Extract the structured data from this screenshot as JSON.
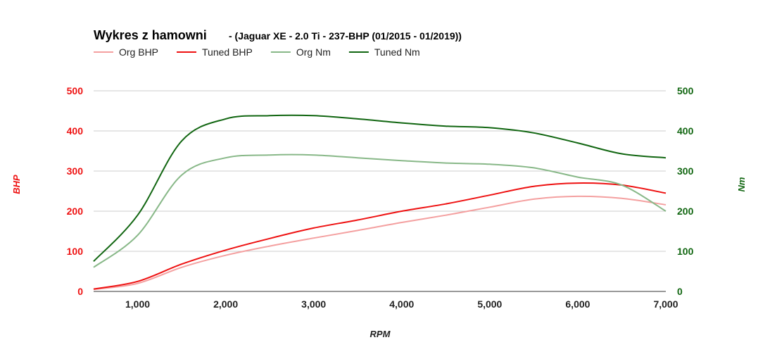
{
  "chart_data": {
    "type": "line",
    "title": "Wykres z hamowni",
    "subtitle": "- (Jaguar XE - 2.0 Ti - 237-BHP (01/2015 - 01/2019))",
    "xlabel": "RPM",
    "ylabel_left": "BHP",
    "ylabel_right": "Nm",
    "xlim": [
      500,
      7000
    ],
    "ylim_left": [
      0,
      500
    ],
    "ylim_right": [
      0,
      500
    ],
    "x_ticks": [
      1000,
      2000,
      3000,
      4000,
      5000,
      6000,
      7000
    ],
    "x_tick_labels": [
      "1,000",
      "2,000",
      "3,000",
      "4,000",
      "5,000",
      "6,000",
      "7,000"
    ],
    "y_ticks_left": [
      0,
      100,
      200,
      300,
      400,
      500
    ],
    "y_ticks_right": [
      0,
      100,
      200,
      300,
      400,
      500
    ],
    "grid": true,
    "legend_position": "top-left",
    "colors": {
      "left_axis": "#ee1111",
      "right_axis": "#116611"
    },
    "series": [
      {
        "name": "Org BHP",
        "axis": "left",
        "color": "#f4a0a0",
        "x": [
          500,
          1000,
          1500,
          2000,
          2500,
          3000,
          3500,
          4000,
          4500,
          5000,
          5500,
          6000,
          6500,
          7000
        ],
        "values": [
          5,
          20,
          60,
          90,
          113,
          133,
          152,
          172,
          190,
          210,
          230,
          237,
          232,
          216
        ]
      },
      {
        "name": "Tuned BHP",
        "axis": "left",
        "color": "#ee1111",
        "x": [
          500,
          1000,
          1500,
          2000,
          2500,
          3000,
          3500,
          4000,
          4500,
          5000,
          5500,
          6000,
          6500,
          7000
        ],
        "values": [
          6,
          25,
          68,
          103,
          132,
          158,
          178,
          200,
          218,
          240,
          262,
          270,
          265,
          245
        ]
      },
      {
        "name": "Org Nm",
        "axis": "right",
        "color": "#88b888",
        "x": [
          500,
          1000,
          1500,
          2000,
          2500,
          3000,
          3500,
          4000,
          4500,
          5000,
          5500,
          6000,
          6500,
          7000
        ],
        "values": [
          60,
          140,
          290,
          333,
          340,
          340,
          333,
          326,
          320,
          317,
          308,
          285,
          265,
          200
        ]
      },
      {
        "name": "Tuned Nm",
        "axis": "right",
        "color": "#116611",
        "x": [
          500,
          1000,
          1500,
          2000,
          2500,
          3000,
          3500,
          4000,
          4500,
          5000,
          5500,
          6000,
          6500,
          7000
        ],
        "values": [
          75,
          190,
          375,
          430,
          438,
          438,
          430,
          420,
          412,
          408,
          395,
          370,
          343,
          333
        ]
      }
    ]
  }
}
